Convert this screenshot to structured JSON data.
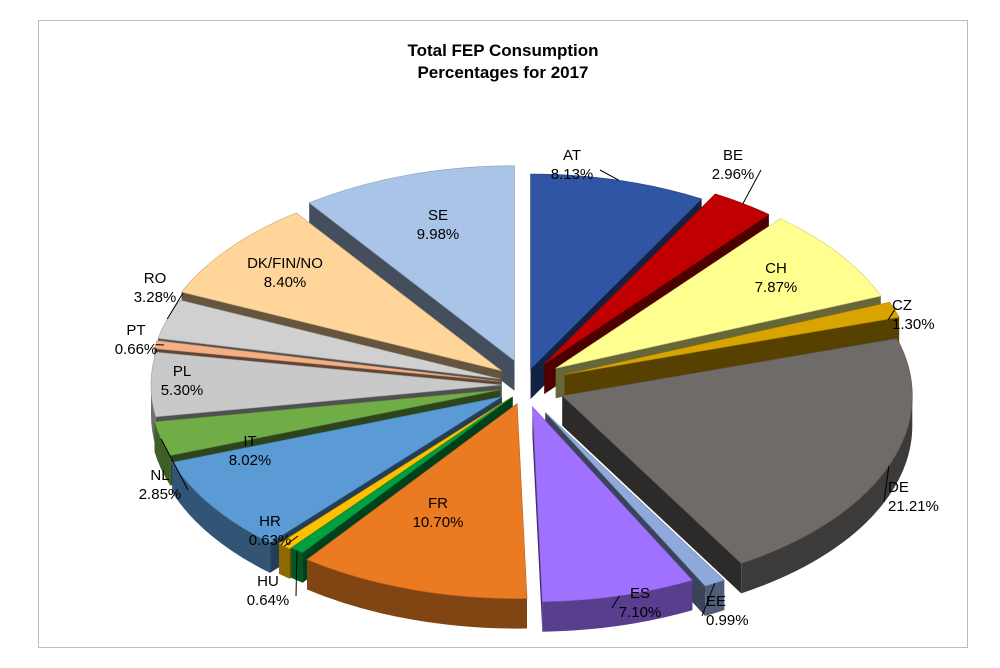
{
  "chart_data": {
    "type": "pie",
    "title_line1": "Total FEP Consumption",
    "title_line2": "Percentages for 2017",
    "slices": [
      {
        "name": "AT",
        "label": "8.13%",
        "value": 8.13,
        "color": "#2f55a4"
      },
      {
        "name": "BE",
        "label": "2.96%",
        "value": 2.96,
        "color": "#c00000"
      },
      {
        "name": "CH",
        "label": "7.87%",
        "value": 7.87,
        "color": "#ffff8f"
      },
      {
        "name": "CZ",
        "label": "1.30%",
        "value": 1.3,
        "color": "#d9a300"
      },
      {
        "name": "DE",
        "label": "21.21%",
        "value": 21.21,
        "color": "#6f6b69"
      },
      {
        "name": "EE",
        "label": "0.99%",
        "value": 0.99,
        "color": "#8fa9dc"
      },
      {
        "name": "ES",
        "label": "7.10%",
        "value": 7.1,
        "color": "#a070ff"
      },
      {
        "name": "FR",
        "label": "10.70%",
        "value": 10.7,
        "color": "#ea7b23"
      },
      {
        "name": "HU",
        "label": "0.64%",
        "value": 0.64,
        "color": "#00a040"
      },
      {
        "name": "HR",
        "label": "0.63%",
        "value": 0.63,
        "color": "#ffc000"
      },
      {
        "name": "IT",
        "label": "8.02%",
        "value": 8.02,
        "color": "#5b9bd5"
      },
      {
        "name": "NL",
        "label": "2.85%",
        "value": 2.85,
        "color": "#70ad47"
      },
      {
        "name": "PL",
        "label": "5.30%",
        "value": 5.3,
        "color": "#c9c9c9"
      },
      {
        "name": "PT",
        "label": "0.66%",
        "value": 0.66,
        "color": "#f4b084"
      },
      {
        "name": "RO",
        "label": "3.28%",
        "value": 3.28,
        "color": "#d0d0d0"
      },
      {
        "name": "DK/FIN/NO",
        "label": "8.40%",
        "value": 8.4,
        "color": "#ffd59a"
      },
      {
        "name": "SE",
        "label": "9.98%",
        "value": 9.98,
        "color": "#a9c4e6"
      }
    ]
  }
}
